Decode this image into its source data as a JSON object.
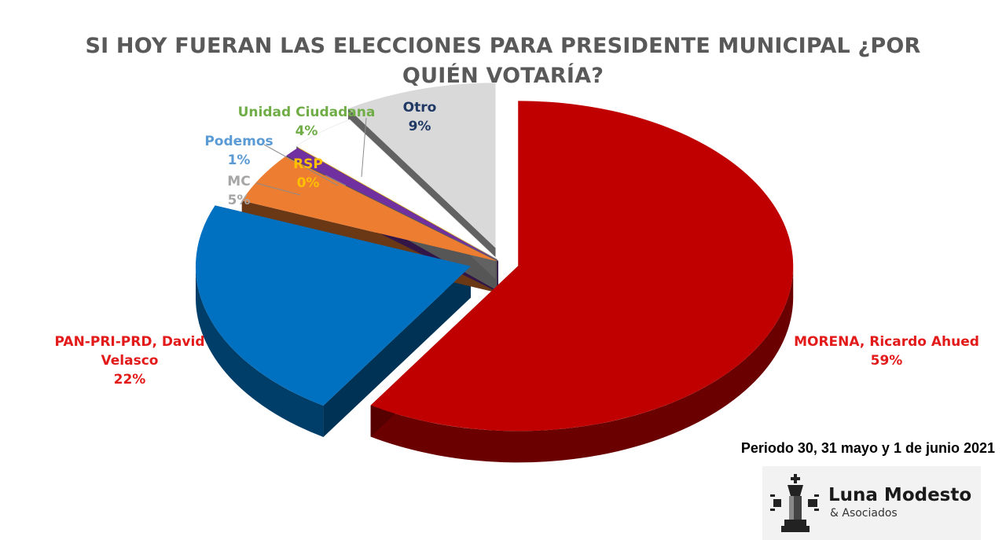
{
  "title_line1": "SI HOY FUERAN LAS ELECCIONES PARA PRESIDENTE MUNICIPAL ¿POR",
  "title_line2": "QUIÉN VOTARÍA?",
  "period": "Periodo 30, 31 mayo y 1 de junio 2021",
  "logo": {
    "name": "Luna Modesto",
    "sub": "& Asociados"
  },
  "chart_data": {
    "type": "pie",
    "title": "SI HOY FUERAN LAS ELECCIONES PARA PRESIDENTE MUNICIPAL ¿POR QUIÉN VOTARÍA?",
    "slices": [
      {
        "label_lines": [
          "MORENA, Ricardo Ahued"
        ],
        "value": 59,
        "pct": "59%",
        "color": "#c00000"
      },
      {
        "label_lines": [
          "PAN-PRI-PRD, David",
          "Velasco"
        ],
        "value": 22,
        "pct": "22%",
        "color": "#0070c0"
      },
      {
        "label_lines": [
          "MC"
        ],
        "value": 5,
        "pct": "5%",
        "color": "#ed7d31"
      },
      {
        "label_lines": [
          "Podemos"
        ],
        "value": 1,
        "pct": "1%",
        "color": "#7030a0"
      },
      {
        "label_lines": [
          "RSP"
        ],
        "value": 0,
        "pct": "0%",
        "color": "#ffc000"
      },
      {
        "label_lines": [
          "Unidad Ciudadana"
        ],
        "value": 4,
        "pct": "4%",
        "color": "#ffffff"
      },
      {
        "label_lines": [
          "Otro"
        ],
        "value": 9,
        "pct": "9%",
        "color": "#d9d9d9"
      }
    ],
    "label_colors": {
      "MORENA, Ricardo Ahued": "#e31a1a",
      "PAN-PRI-PRD, David": "#e31a1a",
      "MC": "#a6a6a6",
      "Podemos": "#5b9bd5",
      "RSP": "#ffc000",
      "Unidad Ciudadana": "#70ad47",
      "Otro": "#1f3864"
    }
  }
}
